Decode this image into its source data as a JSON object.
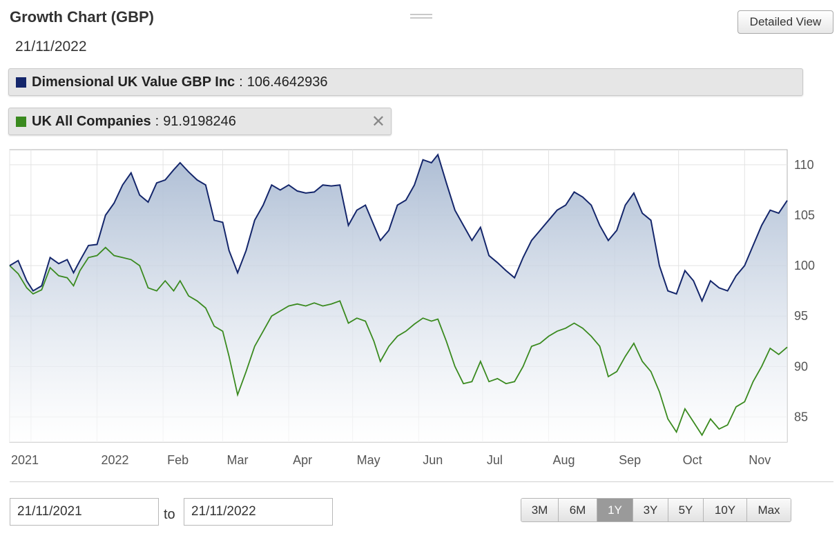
{
  "header": {
    "title": "Growth Chart (GBP)",
    "date": "21/11/2022",
    "detailed_view_label": "Detailed View"
  },
  "legend": [
    {
      "name": "Dimensional UK Value GBP Inc",
      "separator": ":",
      "value": "106.4642936",
      "color": "#14266b",
      "removable": false
    },
    {
      "name": "UK All Companies",
      "separator": ":",
      "value": "91.9198246",
      "color": "#3a8a1f",
      "removable": true,
      "close_glyph": "✕"
    }
  ],
  "controls": {
    "from_date": "21/11/2021",
    "to_label": "to",
    "to_date": "21/11/2022",
    "ranges": [
      "3M",
      "6M",
      "1Y",
      "3Y",
      "5Y",
      "10Y",
      "Max"
    ],
    "active_range": "1Y"
  },
  "chart_data": {
    "type": "line",
    "title": "Growth Chart (GBP)",
    "x_tick_labels": [
      "2021",
      "2022",
      "Feb",
      "Mar",
      "Apr",
      "May",
      "Jun",
      "Jul",
      "Aug",
      "Sep",
      "Oct",
      "Nov"
    ],
    "x_range": [
      "2021-11-21",
      "2022-11-21"
    ],
    "ylim": [
      82.5,
      111.5
    ],
    "y_ticks": [
      85,
      90,
      95,
      100,
      105,
      110
    ],
    "grid": true,
    "y_axis_side": "right",
    "series": [
      {
        "name": "Dimensional UK Value GBP Inc",
        "color": "#14266b",
        "area_fill": true,
        "points": [
          [
            "2021-11-21",
            100.0
          ],
          [
            "2021-11-25",
            100.5
          ],
          [
            "2021-11-29",
            98.5
          ],
          [
            "2021-12-02",
            97.5
          ],
          [
            "2021-12-06",
            98.0
          ],
          [
            "2021-12-10",
            100.8
          ],
          [
            "2021-12-14",
            100.2
          ],
          [
            "2021-12-18",
            100.6
          ],
          [
            "2021-12-21",
            99.3
          ],
          [
            "2021-12-24",
            100.5
          ],
          [
            "2021-12-28",
            102.0
          ],
          [
            "2022-01-01",
            102.1
          ],
          [
            "2022-01-05",
            105.0
          ],
          [
            "2022-01-09",
            106.2
          ],
          [
            "2022-01-13",
            108.0
          ],
          [
            "2022-01-17",
            109.2
          ],
          [
            "2022-01-21",
            107.0
          ],
          [
            "2022-01-25",
            106.3
          ],
          [
            "2022-01-29",
            108.2
          ],
          [
            "2022-02-02",
            108.5
          ],
          [
            "2022-02-06",
            109.5
          ],
          [
            "2022-02-09",
            110.2
          ],
          [
            "2022-02-13",
            109.3
          ],
          [
            "2022-02-17",
            108.5
          ],
          [
            "2022-02-21",
            108.0
          ],
          [
            "2022-02-25",
            104.5
          ],
          [
            "2022-03-01",
            104.3
          ],
          [
            "2022-03-04",
            101.5
          ],
          [
            "2022-03-08",
            99.3
          ],
          [
            "2022-03-12",
            101.5
          ],
          [
            "2022-03-16",
            104.5
          ],
          [
            "2022-03-20",
            106.0
          ],
          [
            "2022-03-24",
            108.0
          ],
          [
            "2022-03-28",
            107.5
          ],
          [
            "2022-04-01",
            108.0
          ],
          [
            "2022-04-05",
            107.4
          ],
          [
            "2022-04-09",
            107.2
          ],
          [
            "2022-04-13",
            107.3
          ],
          [
            "2022-04-17",
            108.0
          ],
          [
            "2022-04-21",
            107.9
          ],
          [
            "2022-04-25",
            108.0
          ],
          [
            "2022-04-29",
            104.0
          ],
          [
            "2022-05-03",
            105.5
          ],
          [
            "2022-05-07",
            106.0
          ],
          [
            "2022-05-11",
            104.0
          ],
          [
            "2022-05-14",
            102.5
          ],
          [
            "2022-05-18",
            103.5
          ],
          [
            "2022-05-22",
            106.0
          ],
          [
            "2022-05-26",
            106.5
          ],
          [
            "2022-05-30",
            108.0
          ],
          [
            "2022-06-03",
            110.5
          ],
          [
            "2022-06-07",
            110.2
          ],
          [
            "2022-06-10",
            111.0
          ],
          [
            "2022-06-14",
            108.2
          ],
          [
            "2022-06-18",
            105.5
          ],
          [
            "2022-06-22",
            104.0
          ],
          [
            "2022-06-26",
            102.5
          ],
          [
            "2022-06-30",
            103.8
          ],
          [
            "2022-07-04",
            101.0
          ],
          [
            "2022-07-08",
            100.3
          ],
          [
            "2022-07-12",
            99.5
          ],
          [
            "2022-07-16",
            98.8
          ],
          [
            "2022-07-20",
            100.8
          ],
          [
            "2022-07-24",
            102.5
          ],
          [
            "2022-07-28",
            103.5
          ],
          [
            "2022-08-01",
            104.5
          ],
          [
            "2022-08-05",
            105.5
          ],
          [
            "2022-08-09",
            106.0
          ],
          [
            "2022-08-13",
            107.3
          ],
          [
            "2022-08-17",
            106.8
          ],
          [
            "2022-08-21",
            106.0
          ],
          [
            "2022-08-25",
            104.0
          ],
          [
            "2022-08-29",
            102.5
          ],
          [
            "2022-09-02",
            103.5
          ],
          [
            "2022-09-06",
            106.0
          ],
          [
            "2022-09-10",
            107.2
          ],
          [
            "2022-09-14",
            105.2
          ],
          [
            "2022-09-18",
            104.5
          ],
          [
            "2022-09-22",
            100.0
          ],
          [
            "2022-09-26",
            97.5
          ],
          [
            "2022-09-30",
            97.2
          ],
          [
            "2022-10-04",
            99.5
          ],
          [
            "2022-10-08",
            98.5
          ],
          [
            "2022-10-12",
            96.5
          ],
          [
            "2022-10-16",
            98.5
          ],
          [
            "2022-10-20",
            97.8
          ],
          [
            "2022-10-24",
            97.5
          ],
          [
            "2022-10-28",
            99.0
          ],
          [
            "2022-11-01",
            100.0
          ],
          [
            "2022-11-05",
            102.0
          ],
          [
            "2022-11-09",
            104.0
          ],
          [
            "2022-11-13",
            105.5
          ],
          [
            "2022-11-17",
            105.2
          ],
          [
            "2022-11-21",
            106.46
          ]
        ]
      },
      {
        "name": "UK All Companies",
        "color": "#3a8a1f",
        "area_fill": false,
        "points": [
          [
            "2021-11-21",
            100.0
          ],
          [
            "2021-11-25",
            99.2
          ],
          [
            "2021-11-29",
            97.8
          ],
          [
            "2021-12-02",
            97.2
          ],
          [
            "2021-12-06",
            97.6
          ],
          [
            "2021-12-10",
            99.8
          ],
          [
            "2021-12-14",
            99.0
          ],
          [
            "2021-12-18",
            98.8
          ],
          [
            "2021-12-21",
            98.0
          ],
          [
            "2021-12-24",
            99.5
          ],
          [
            "2021-12-28",
            100.8
          ],
          [
            "2022-01-01",
            101.0
          ],
          [
            "2022-01-05",
            101.8
          ],
          [
            "2022-01-09",
            101.0
          ],
          [
            "2022-01-13",
            100.8
          ],
          [
            "2022-01-17",
            100.6
          ],
          [
            "2022-01-21",
            100.0
          ],
          [
            "2022-01-25",
            97.8
          ],
          [
            "2022-01-29",
            97.5
          ],
          [
            "2022-02-02",
            98.5
          ],
          [
            "2022-02-06",
            97.5
          ],
          [
            "2022-02-09",
            98.5
          ],
          [
            "2022-02-13",
            97.0
          ],
          [
            "2022-02-17",
            96.5
          ],
          [
            "2022-02-21",
            95.8
          ],
          [
            "2022-02-25",
            94.0
          ],
          [
            "2022-03-01",
            93.5
          ],
          [
            "2022-03-04",
            91.0
          ],
          [
            "2022-03-08",
            87.2
          ],
          [
            "2022-03-12",
            89.5
          ],
          [
            "2022-03-16",
            92.0
          ],
          [
            "2022-03-20",
            93.5
          ],
          [
            "2022-03-24",
            95.0
          ],
          [
            "2022-03-28",
            95.5
          ],
          [
            "2022-04-01",
            96.0
          ],
          [
            "2022-04-05",
            96.2
          ],
          [
            "2022-04-09",
            96.0
          ],
          [
            "2022-04-13",
            96.3
          ],
          [
            "2022-04-17",
            96.0
          ],
          [
            "2022-04-21",
            96.2
          ],
          [
            "2022-04-25",
            96.5
          ],
          [
            "2022-04-29",
            94.3
          ],
          [
            "2022-05-03",
            94.8
          ],
          [
            "2022-05-07",
            94.5
          ],
          [
            "2022-05-11",
            92.5
          ],
          [
            "2022-05-14",
            90.5
          ],
          [
            "2022-05-18",
            92.0
          ],
          [
            "2022-05-22",
            93.0
          ],
          [
            "2022-05-26",
            93.5
          ],
          [
            "2022-05-30",
            94.2
          ],
          [
            "2022-06-03",
            94.8
          ],
          [
            "2022-06-07",
            94.5
          ],
          [
            "2022-06-10",
            94.7
          ],
          [
            "2022-06-14",
            92.5
          ],
          [
            "2022-06-18",
            90.0
          ],
          [
            "2022-06-22",
            88.3
          ],
          [
            "2022-06-26",
            88.5
          ],
          [
            "2022-06-30",
            90.5
          ],
          [
            "2022-07-04",
            88.5
          ],
          [
            "2022-07-08",
            88.8
          ],
          [
            "2022-07-12",
            88.3
          ],
          [
            "2022-07-16",
            88.5
          ],
          [
            "2022-07-20",
            90.0
          ],
          [
            "2022-07-24",
            92.0
          ],
          [
            "2022-07-28",
            92.3
          ],
          [
            "2022-08-01",
            93.0
          ],
          [
            "2022-08-05",
            93.5
          ],
          [
            "2022-08-09",
            93.8
          ],
          [
            "2022-08-13",
            94.3
          ],
          [
            "2022-08-17",
            93.8
          ],
          [
            "2022-08-21",
            93.0
          ],
          [
            "2022-08-25",
            92.0
          ],
          [
            "2022-08-29",
            89.0
          ],
          [
            "2022-09-02",
            89.5
          ],
          [
            "2022-09-06",
            91.0
          ],
          [
            "2022-09-10",
            92.3
          ],
          [
            "2022-09-14",
            90.5
          ],
          [
            "2022-09-18",
            89.5
          ],
          [
            "2022-09-22",
            87.5
          ],
          [
            "2022-09-26",
            84.8
          ],
          [
            "2022-09-30",
            83.5
          ],
          [
            "2022-10-04",
            85.8
          ],
          [
            "2022-10-08",
            84.5
          ],
          [
            "2022-10-12",
            83.2
          ],
          [
            "2022-10-16",
            84.8
          ],
          [
            "2022-10-20",
            83.8
          ],
          [
            "2022-10-24",
            84.2
          ],
          [
            "2022-10-28",
            86.0
          ],
          [
            "2022-11-01",
            86.5
          ],
          [
            "2022-11-05",
            88.5
          ],
          [
            "2022-11-09",
            90.0
          ],
          [
            "2022-11-13",
            91.8
          ],
          [
            "2022-11-17",
            91.2
          ],
          [
            "2022-11-21",
            91.92
          ]
        ]
      }
    ]
  }
}
